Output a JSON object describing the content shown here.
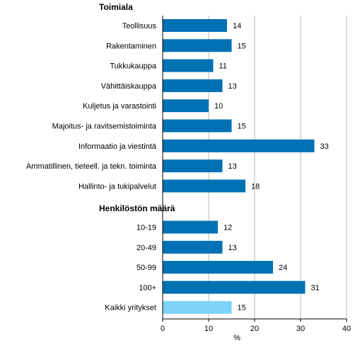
{
  "chart_data": {
    "type": "bar",
    "orientation": "horizontal",
    "groups": [
      {
        "title": "Toimiala",
        "bars": [
          {
            "label": "Teollisuus",
            "value": 14
          },
          {
            "label": "Rakentaminen",
            "value": 15
          },
          {
            "label": "Tukkukauppa",
            "value": 11
          },
          {
            "label": "Vähittäiskauppa",
            "value": 13
          },
          {
            "label": "Kuljetus ja varastointi",
            "value": 10
          },
          {
            "label": "Majoitus- ja ravitsemistoiminta",
            "value": 15
          },
          {
            "label": "Informaatio ja viestintä",
            "value": 33
          },
          {
            "label": "Ammatillinen, tieteell. ja tekn. toiminta",
            "value": 13
          },
          {
            "label": "Hallinto- ja tukipalvelut",
            "value": 18
          }
        ]
      },
      {
        "title": "Henkilöstön määrä",
        "bars": [
          {
            "label": "10-19",
            "value": 12
          },
          {
            "label": "20-49",
            "value": 13
          },
          {
            "label": "50-99",
            "value": 24
          },
          {
            "label": "100+",
            "value": 31
          },
          {
            "label": "Kaikki yritykset",
            "value": 15,
            "highlight": true
          }
        ]
      }
    ],
    "xlabel": "%",
    "xlim": [
      0,
      40
    ],
    "xticks": [
      0,
      10,
      20,
      30,
      40
    ],
    "grid": true,
    "colors": {
      "bar": "#0071b3",
      "highlight": "#7dd3f8",
      "grid": "#b9b9b9",
      "axis": "#000000"
    }
  }
}
